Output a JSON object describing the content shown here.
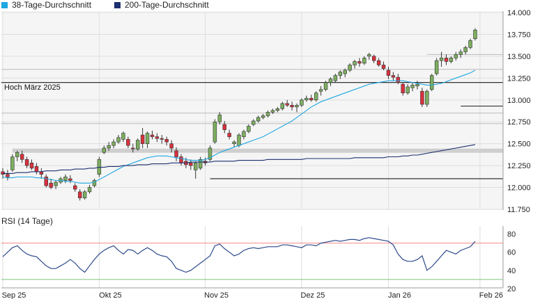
{
  "legend": [
    {
      "label": "38-Tage-Durchschnitt",
      "color": "#1ea7e1"
    },
    {
      "label": "200-Tage-Durchschnitt",
      "color": "#1d2f6f"
    }
  ],
  "rsi_label": "RSI (14 Tage)",
  "colors": {
    "up": "#7cae5f",
    "down": "#d9303d",
    "wick": "#333333",
    "ma38": "#1ea7e1",
    "ma200": "#1d2f6f",
    "rsi": "#2c4a8c",
    "rsi_upper": "#f28a8a",
    "rsi_lower": "#7cc47c",
    "plot_bg": "#f5f5f5",
    "grid": "#dedede",
    "hline": "#333333",
    "band": "#cfcfcf"
  },
  "chart_data": [
    {
      "type": "candlestick",
      "ylim": [
        11.75,
        14.0
      ],
      "yticks": [
        "11.750",
        "12.000",
        "12.250",
        "12.500",
        "12.750",
        "13.000",
        "13.250",
        "13.500",
        "13.750",
        "14.000"
      ],
      "xticks": [
        {
          "label": "Sep 25",
          "i": 0
        },
        {
          "label": "Okt 25",
          "i": 20
        },
        {
          "label": "Nov 25",
          "i": 42
        },
        {
          "label": "Dez 25",
          "i": 62
        },
        {
          "label": "Jan 26",
          "i": 80
        },
        {
          "label": "Feb 26",
          "i": 99
        }
      ],
      "horizontal_lines": [
        {
          "y": 13.2,
          "label": "Hoch März 2025",
          "from_i": 0,
          "style": "solid"
        },
        {
          "y": 12.42,
          "from_i": 2,
          "style": "band"
        },
        {
          "y": 12.1,
          "from_i": 43,
          "style": "solid"
        },
        {
          "y": 12.93,
          "from_i": 95,
          "style": "solid"
        },
        {
          "y": 13.52,
          "from_i": 88,
          "style": "thin"
        },
        {
          "y": 12.85,
          "from_i": 0,
          "style": "thin"
        },
        {
          "y": 13.35,
          "from_i": 0,
          "style": "thin"
        },
        {
          "y": 12.73,
          "from_i": 0,
          "style": "thin"
        }
      ],
      "ohlc": [
        [
          12.18,
          12.22,
          12.1,
          12.15
        ],
        [
          12.15,
          12.2,
          12.08,
          12.12
        ],
        [
          12.2,
          12.38,
          12.18,
          12.35
        ],
        [
          12.35,
          12.42,
          12.3,
          12.4
        ],
        [
          12.38,
          12.42,
          12.28,
          12.32
        ],
        [
          12.32,
          12.35,
          12.22,
          12.25
        ],
        [
          12.28,
          12.32,
          12.2,
          12.22
        ],
        [
          12.24,
          12.28,
          12.15,
          12.18
        ],
        [
          12.18,
          12.22,
          12.1,
          12.15
        ],
        [
          12.12,
          12.15,
          12.0,
          12.02
        ],
        [
          12.05,
          12.1,
          11.98,
          12.0
        ],
        [
          12.02,
          12.08,
          11.98,
          12.06
        ],
        [
          12.06,
          12.12,
          12.04,
          12.1
        ],
        [
          12.08,
          12.15,
          12.05,
          12.12
        ],
        [
          12.1,
          12.14,
          12.05,
          12.08
        ],
        [
          12.02,
          12.05,
          11.95,
          11.98
        ],
        [
          11.95,
          11.98,
          11.85,
          11.88
        ],
        [
          11.88,
          11.97,
          11.86,
          11.95
        ],
        [
          11.95,
          12.03,
          11.93,
          12.0
        ],
        [
          12.02,
          12.1,
          12.0,
          12.08
        ],
        [
          12.15,
          12.35,
          12.12,
          12.32
        ],
        [
          12.4,
          12.48,
          12.38,
          12.45
        ],
        [
          12.45,
          12.52,
          12.42,
          12.48
        ],
        [
          12.48,
          12.55,
          12.45,
          12.52
        ],
        [
          12.52,
          12.6,
          12.5,
          12.57
        ],
        [
          12.55,
          12.64,
          12.52,
          12.62
        ],
        [
          12.55,
          12.58,
          12.45,
          12.48
        ],
        [
          12.45,
          12.5,
          12.4,
          12.44
        ],
        [
          12.44,
          12.56,
          12.42,
          12.54
        ],
        [
          12.6,
          12.68,
          12.45,
          12.5
        ],
        [
          12.5,
          12.64,
          12.45,
          12.62
        ],
        [
          12.6,
          12.65,
          12.55,
          12.58
        ],
        [
          12.58,
          12.62,
          12.52,
          12.56
        ],
        [
          12.56,
          12.6,
          12.5,
          12.55
        ],
        [
          12.55,
          12.58,
          12.48,
          12.52
        ],
        [
          12.5,
          12.54,
          12.4,
          12.45
        ],
        [
          12.42,
          12.46,
          12.3,
          12.35
        ],
        [
          12.35,
          12.38,
          12.25,
          12.28
        ],
        [
          12.3,
          12.34,
          12.22,
          12.26
        ],
        [
          12.28,
          12.32,
          12.2,
          12.25
        ],
        [
          12.2,
          12.3,
          12.1,
          12.28
        ],
        [
          12.22,
          12.35,
          12.2,
          12.32
        ],
        [
          12.3,
          12.34,
          12.25,
          12.28
        ],
        [
          12.32,
          12.48,
          12.3,
          12.45
        ],
        [
          12.52,
          12.78,
          12.5,
          12.75
        ],
        [
          12.75,
          12.86,
          12.72,
          12.83
        ],
        [
          12.72,
          12.76,
          12.62,
          12.66
        ],
        [
          12.62,
          12.66,
          12.55,
          12.58
        ],
        [
          12.5,
          12.54,
          12.46,
          12.52
        ],
        [
          12.48,
          12.62,
          12.46,
          12.6
        ],
        [
          12.58,
          12.66,
          12.55,
          12.64
        ],
        [
          12.64,
          12.72,
          12.62,
          12.7
        ],
        [
          12.72,
          12.78,
          12.7,
          12.76
        ],
        [
          12.76,
          12.82,
          12.74,
          12.8
        ],
        [
          12.8,
          12.84,
          12.78,
          12.82
        ],
        [
          12.82,
          12.88,
          12.8,
          12.86
        ],
        [
          12.86,
          12.9,
          12.84,
          12.88
        ],
        [
          12.88,
          12.92,
          12.86,
          12.9
        ],
        [
          12.9,
          12.98,
          12.88,
          12.96
        ],
        [
          12.96,
          13.0,
          12.92,
          12.94
        ],
        [
          12.94,
          12.98,
          12.88,
          12.92
        ],
        [
          12.92,
          12.96,
          12.86,
          12.94
        ],
        [
          12.94,
          13.02,
          12.92,
          13.0
        ],
        [
          13.0,
          13.05,
          12.98,
          13.02
        ],
        [
          13.02,
          13.06,
          12.98,
          13.0
        ],
        [
          13.0,
          13.1,
          12.98,
          13.08
        ],
        [
          13.1,
          13.16,
          13.05,
          13.12
        ],
        [
          13.12,
          13.22,
          13.1,
          13.2
        ],
        [
          13.2,
          13.26,
          13.16,
          13.24
        ],
        [
          13.22,
          13.3,
          13.2,
          13.28
        ],
        [
          13.28,
          13.34,
          13.24,
          13.32
        ],
        [
          13.3,
          13.36,
          13.26,
          13.34
        ],
        [
          13.34,
          13.42,
          13.32,
          13.4
        ],
        [
          13.4,
          13.46,
          13.36,
          13.44
        ],
        [
          13.44,
          13.48,
          13.38,
          13.42
        ],
        [
          13.42,
          13.5,
          13.4,
          13.48
        ],
        [
          13.5,
          13.54,
          13.46,
          13.52
        ],
        [
          13.5,
          13.52,
          13.42,
          13.45
        ],
        [
          13.45,
          13.48,
          13.38,
          13.4
        ],
        [
          13.4,
          13.44,
          13.34,
          13.36
        ],
        [
          13.34,
          13.38,
          13.24,
          13.28
        ],
        [
          13.28,
          13.32,
          13.22,
          13.26
        ],
        [
          13.26,
          13.3,
          13.18,
          13.2
        ],
        [
          13.18,
          13.2,
          13.05,
          13.08
        ],
        [
          13.08,
          13.18,
          13.06,
          13.15
        ],
        [
          13.14,
          13.2,
          13.1,
          13.17
        ],
        [
          13.16,
          13.22,
          13.12,
          13.18
        ],
        [
          13.1,
          13.14,
          12.92,
          12.95
        ],
        [
          12.95,
          13.12,
          12.92,
          13.1
        ],
        [
          13.12,
          13.3,
          13.1,
          13.28
        ],
        [
          13.3,
          13.48,
          13.28,
          13.45
        ],
        [
          13.45,
          13.55,
          13.38,
          13.48
        ],
        [
          13.48,
          13.52,
          13.4,
          13.44
        ],
        [
          13.44,
          13.5,
          13.42,
          13.48
        ],
        [
          13.48,
          13.55,
          13.45,
          13.52
        ],
        [
          13.52,
          13.58,
          13.48,
          13.55
        ],
        [
          13.55,
          13.62,
          13.52,
          13.6
        ],
        [
          13.6,
          13.7,
          13.58,
          13.68
        ],
        [
          13.7,
          13.82,
          13.68,
          13.8
        ]
      ],
      "ma38": [
        12.12,
        12.11,
        12.11,
        12.12,
        12.12,
        12.12,
        12.12,
        12.11,
        12.11,
        12.1,
        12.09,
        12.08,
        12.08,
        12.07,
        12.07,
        12.06,
        12.05,
        12.05,
        12.05,
        12.06,
        12.09,
        12.12,
        12.15,
        12.18,
        12.21,
        12.24,
        12.26,
        12.28,
        12.3,
        12.32,
        12.34,
        12.35,
        12.36,
        12.36,
        12.36,
        12.35,
        12.34,
        12.33,
        12.32,
        12.31,
        12.31,
        12.31,
        12.32,
        12.34,
        12.37,
        12.4,
        12.42,
        12.44,
        12.46,
        12.48,
        12.5,
        12.52,
        12.54,
        12.56,
        12.58,
        12.61,
        12.64,
        12.67,
        12.7,
        12.73,
        12.76,
        12.8,
        12.84,
        12.88,
        12.92,
        12.95,
        12.98,
        13.0,
        13.02,
        13.04,
        13.06,
        13.08,
        13.1,
        13.12,
        13.14,
        13.16,
        13.18,
        13.19,
        13.2,
        13.21,
        13.22,
        13.22,
        13.22,
        13.22,
        13.21,
        13.2,
        13.19,
        13.18,
        13.17,
        13.17,
        13.18,
        13.19,
        13.21,
        13.23,
        13.25,
        13.27,
        13.29,
        13.31,
        13.34
      ],
      "ma200": [
        12.16,
        12.16,
        12.16,
        12.17,
        12.17,
        12.17,
        12.18,
        12.18,
        12.18,
        12.19,
        12.19,
        12.19,
        12.2,
        12.2,
        12.2,
        12.21,
        12.21,
        12.21,
        12.22,
        12.22,
        12.23,
        12.23,
        12.24,
        12.24,
        12.24,
        12.25,
        12.25,
        12.25,
        12.26,
        12.26,
        12.26,
        12.27,
        12.27,
        12.27,
        12.27,
        12.28,
        12.28,
        12.28,
        12.28,
        12.29,
        12.29,
        12.29,
        12.29,
        12.29,
        12.3,
        12.3,
        12.3,
        12.3,
        12.3,
        12.31,
        12.31,
        12.31,
        12.31,
        12.31,
        12.31,
        12.32,
        12.32,
        12.32,
        12.32,
        12.32,
        12.32,
        12.32,
        12.32,
        12.33,
        12.33,
        12.33,
        12.33,
        12.33,
        12.33,
        12.33,
        12.33,
        12.33,
        12.33,
        12.34,
        12.34,
        12.34,
        12.34,
        12.34,
        12.34,
        12.34,
        12.35,
        12.35,
        12.35,
        12.36,
        12.36,
        12.37,
        12.37,
        12.38,
        12.39,
        12.4,
        12.41,
        12.42,
        12.43,
        12.44,
        12.45,
        12.46,
        12.47,
        12.48,
        12.49
      ]
    },
    {
      "type": "line",
      "title": "RSI (14 Tage)",
      "ylim": [
        20,
        85
      ],
      "yticks": [
        "20",
        "40",
        "60",
        "80"
      ],
      "levels": [
        70,
        30
      ],
      "values": [
        55,
        60,
        65,
        67,
        62,
        58,
        56,
        55,
        50,
        45,
        42,
        42,
        45,
        48,
        52,
        48,
        42,
        38,
        45,
        52,
        58,
        62,
        65,
        67,
        62,
        58,
        63,
        62,
        58,
        62,
        65,
        62,
        58,
        56,
        55,
        50,
        42,
        40,
        38,
        40,
        44,
        48,
        52,
        56,
        67,
        69,
        64,
        60,
        56,
        58,
        62,
        64,
        65,
        64,
        65,
        66,
        66,
        66,
        68,
        68,
        67,
        66,
        65,
        68,
        68,
        67,
        70,
        71,
        72,
        73,
        72,
        73,
        74,
        74,
        73,
        75,
        76,
        75,
        74,
        73,
        72,
        68,
        58,
        52,
        50,
        50,
        52,
        56,
        40,
        44,
        50,
        56,
        62,
        60,
        58,
        62,
        64,
        66,
        72
      ]
    }
  ]
}
